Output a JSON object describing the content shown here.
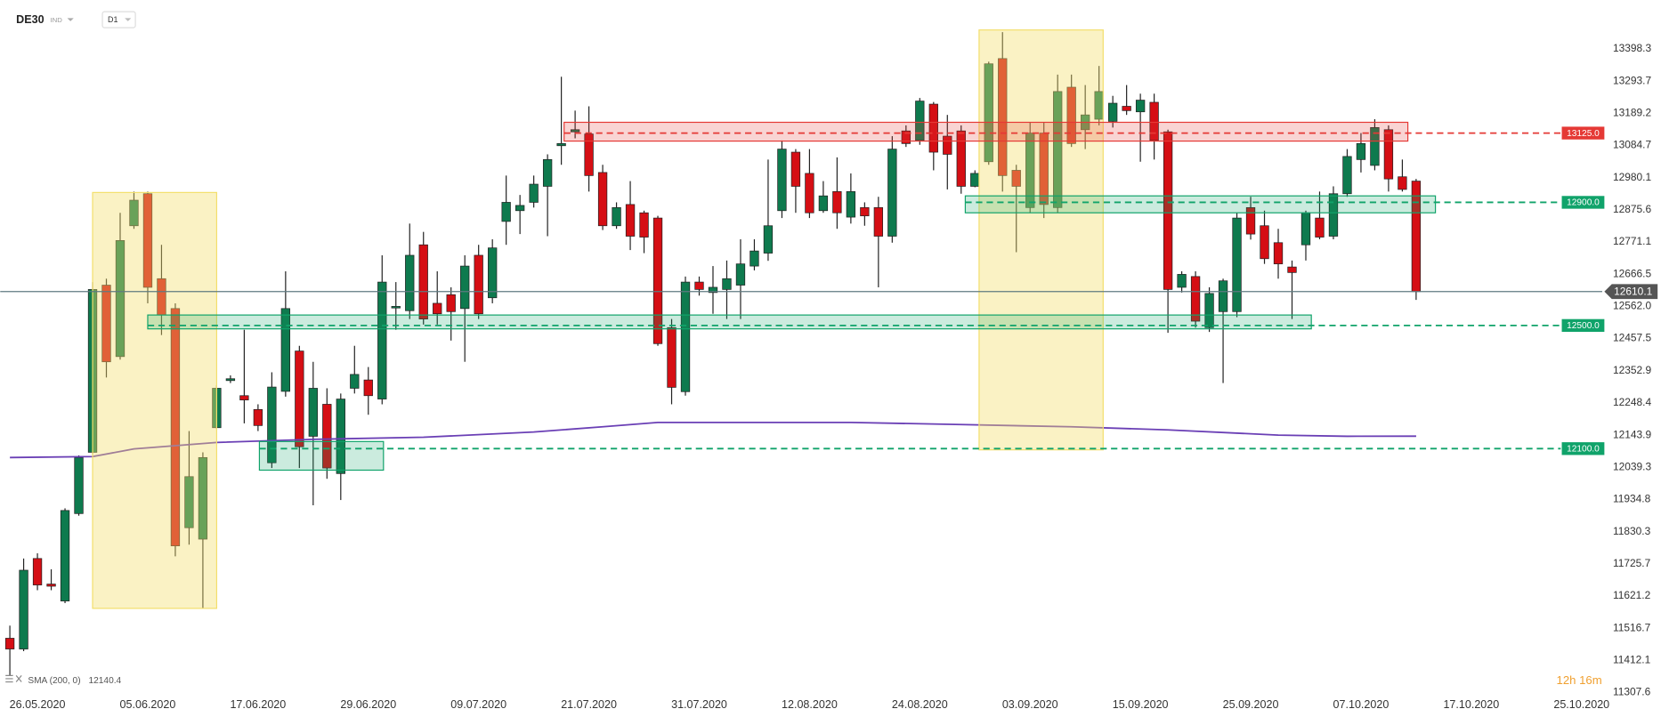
{
  "chart_data": {
    "type": "candlestick",
    "symbol": "DE30",
    "instrument_type": "IND",
    "interval": "D1",
    "countdown": "12h 16m",
    "up_color": "#0e7a4e",
    "down_color": "#d50e14",
    "xlim": [
      -0.7,
      115.5
    ],
    "ylim": [
      11293.8,
      13557.3
    ],
    "yticks": [
      13398.3,
      13293.7,
      13189.2,
      13084.7,
      12980.1,
      12875.6,
      12771.1,
      12666.5,
      {
        "value": 12562,
        "label": "12562.0"
      },
      12457.5,
      12352.9,
      12248.4,
      12143.9,
      12039.3,
      11934.8,
      11830.3,
      11725.7,
      11621.2,
      11516.7,
      11412.1,
      11307.6
    ],
    "xticks": [
      {
        "value": 2,
        "label": "26.05.2020"
      },
      {
        "value": 10,
        "label": "05.06.2020"
      },
      {
        "value": 18,
        "label": "17.06.2020"
      },
      {
        "value": 26,
        "label": "29.06.2020"
      },
      {
        "value": 34,
        "label": "09.07.2020"
      },
      {
        "value": 42,
        "label": "21.07.2020"
      },
      {
        "value": 50,
        "label": "31.07.2020"
      },
      {
        "value": 58,
        "label": "12.08.2020"
      },
      {
        "value": 66,
        "label": "24.08.2020"
      },
      {
        "value": 74,
        "label": "03.09.2020"
      },
      {
        "value": 82,
        "label": "15.09.2020"
      },
      {
        "value": 90,
        "label": "25.09.2020"
      },
      {
        "value": 98,
        "label": "07.10.2020"
      },
      {
        "value": 106,
        "label": "17.10.2020"
      },
      {
        "value": 114,
        "label": "25.10.2020"
      }
    ],
    "open": [
      11484,
      11449,
      11743,
      11660,
      11605,
      11889,
      12088,
      12631,
      12399,
      12824,
      12928,
      12652,
      12555,
      11843,
      11806,
      12168,
      12321,
      12272,
      12227,
      12054,
      12286,
      12417,
      12140,
      12244,
      12019,
      12296,
      12323,
      12261,
      12559,
      12548,
      12762,
      12572,
      12600,
      12555,
      12728,
      12590,
      12838,
      12873,
      12900,
      12952,
      13084,
      13129,
      13122,
      12997,
      12824,
      12893,
      12866,
      12849,
      12493,
      12285,
      12641,
      12607,
      12617,
      12631,
      12693,
      12735,
      12873,
      13063,
      12994,
      12873,
      12935,
      12852,
      12883,
      12883,
      12790,
      13132,
      13101,
      13219,
      13115,
      13132,
      12952,
      13032,
      13367,
      13004,
      12883,
      13125,
      12883,
      13274,
      13136,
      13170,
      13163,
      13212,
      13194,
      13225,
      13129,
      12624,
      12659,
      12493,
      12545,
      12545,
      12883,
      12824,
      12769,
      12690,
      12762,
      12849,
      12790,
      12928,
      13039,
      13020,
      13136,
      12983,
      12969
    ],
    "high": [
      11525,
      11743,
      11760,
      11708,
      11906,
      12078,
      12641,
      12652,
      12866,
      12935,
      12935,
      12762,
      12572,
      12157,
      12088,
      12306,
      12338,
      12486,
      12244,
      12348,
      12676,
      12434,
      12382,
      12296,
      12279,
      12434,
      12365,
      12728,
      12641,
      12831,
      12804,
      12676,
      12624,
      12728,
      12762,
      12780,
      12987,
      12924,
      12987,
      13056,
      13308,
      13198,
      13212,
      13022,
      12900,
      12969,
      12873,
      12856,
      12521,
      12659,
      12659,
      12693,
      12711,
      12780,
      12780,
      13039,
      13101,
      13073,
      13073,
      12969,
      13046,
      12994,
      12900,
      12918,
      13115,
      13150,
      13239,
      13226,
      13184,
      13150,
      13004,
      13357,
      13453,
      13022,
      13160,
      13160,
      13315,
      13315,
      13281,
      13343,
      13246,
      13281,
      13253,
      13253,
      13136,
      12676,
      12676,
      12624,
      12652,
      12866,
      12918,
      12873,
      12814,
      12711,
      12873,
      12935,
      12952,
      13073,
      13125,
      13170,
      13150,
      13039,
      12976
    ],
    "low": [
      11363,
      11442,
      11640,
      11640,
      11598,
      11882,
      12081,
      12331,
      12389,
      12814,
      12572,
      12469,
      11750,
      11788,
      11580,
      12164,
      12313,
      12182,
      12157,
      12037,
      12269,
      12037,
      11916,
      12002,
      11933,
      12279,
      12210,
      12244,
      12486,
      12521,
      12503,
      12503,
      12451,
      12382,
      12521,
      12572,
      12762,
      12797,
      12883,
      12790,
      13022,
      13108,
      12935,
      12810,
      12814,
      12745,
      12735,
      12434,
      12244,
      12272,
      12597,
      12538,
      12521,
      12521,
      12679,
      12710,
      12849,
      12866,
      12849,
      12866,
      12814,
      12831,
      12824,
      12624,
      12769,
      13080,
      13087,
      13004,
      12942,
      12928,
      12949,
      13022,
      12935,
      12738,
      12866,
      12849,
      12866,
      13080,
      13073,
      13150,
      13143,
      13184,
      13032,
      13039,
      12476,
      12607,
      12493,
      12479,
      12313,
      12527,
      12779,
      12700,
      12652,
      12521,
      12711,
      12780,
      12780,
      12918,
      12997,
      13004,
      12935,
      12935,
      12583
    ],
    "close": [
      11449,
      11705,
      11657,
      11653,
      11899,
      12071,
      12617,
      12382,
      12776,
      12907,
      12624,
      12534,
      11784,
      12009,
      12071,
      12296,
      12327,
      12258,
      12175,
      12300,
      12555,
      12106,
      12296,
      12037,
      12261,
      12341,
      12272,
      12641,
      12562,
      12728,
      12521,
      12538,
      12545,
      12693,
      12538,
      12752,
      12900,
      12890,
      12959,
      13039,
      13091,
      13136,
      12987,
      12824,
      12883,
      12790,
      12787,
      12441,
      12299,
      12641,
      12617,
      12624,
      12652,
      12700,
      12742,
      12824,
      13073,
      12952,
      12866,
      12921,
      12866,
      12935,
      12856,
      12790,
      13073,
      13091,
      13229,
      13063,
      13056,
      12952,
      12994,
      13350,
      12987,
      12952,
      13125,
      12893,
      13260,
      13091,
      13184,
      13260,
      13222,
      13198,
      13232,
      13101,
      12617,
      12666,
      12514,
      12604,
      12645,
      12849,
      12797,
      12717,
      12700,
      12672,
      12866,
      12787,
      12928,
      13049,
      13091,
      13143,
      12976,
      12942,
      12610.1
    ],
    "sma": {
      "name": "SMA (200, 0)",
      "color": "#6a3fb5",
      "x": [
        0,
        6,
        9,
        15,
        22,
        30,
        38,
        43,
        47,
        53,
        61,
        69,
        77,
        84,
        92,
        97,
        102
      ],
      "values": [
        12071,
        12074,
        12099,
        12120,
        12130,
        12137,
        12154,
        12171,
        12185,
        12185,
        12185,
        12178,
        12171,
        12161,
        12144,
        12140,
        12140.4
      ]
    },
    "current_price": {
      "value": 12610.1,
      "label": "12610.1",
      "color": "#5f7a80"
    },
    "levels": [
      {
        "value": 13125,
        "label": "13125.0",
        "color": "#e53935",
        "zone": {
          "low": 13099,
          "high": 13160,
          "start": 40.2,
          "end": 101.4
        }
      },
      {
        "value": 12900,
        "label": "12900.0",
        "color": "#10a36a",
        "zone": {
          "low": 12866,
          "high": 12921,
          "start": 69.3,
          "end": 103.4
        }
      },
      {
        "value": 12500,
        "label": "12500.0",
        "color": "#10a36a",
        "zone": {
          "low": 12489,
          "high": 12534,
          "start": 10,
          "end": 94.4
        }
      },
      {
        "value": 12100,
        "label": "12100.0",
        "color": "#10a36a",
        "zone": {
          "low": 12030,
          "high": 12123,
          "start": 18.1,
          "end": 27.1
        }
      }
    ],
    "highlights": [
      {
        "low": 11581,
        "high": 12932,
        "start": 6,
        "end": 15,
        "color": "#f3df6c"
      },
      {
        "low": 12096,
        "high": 13460,
        "start": 70.3,
        "end": 79.3,
        "color": "#f3df6c"
      }
    ]
  }
}
